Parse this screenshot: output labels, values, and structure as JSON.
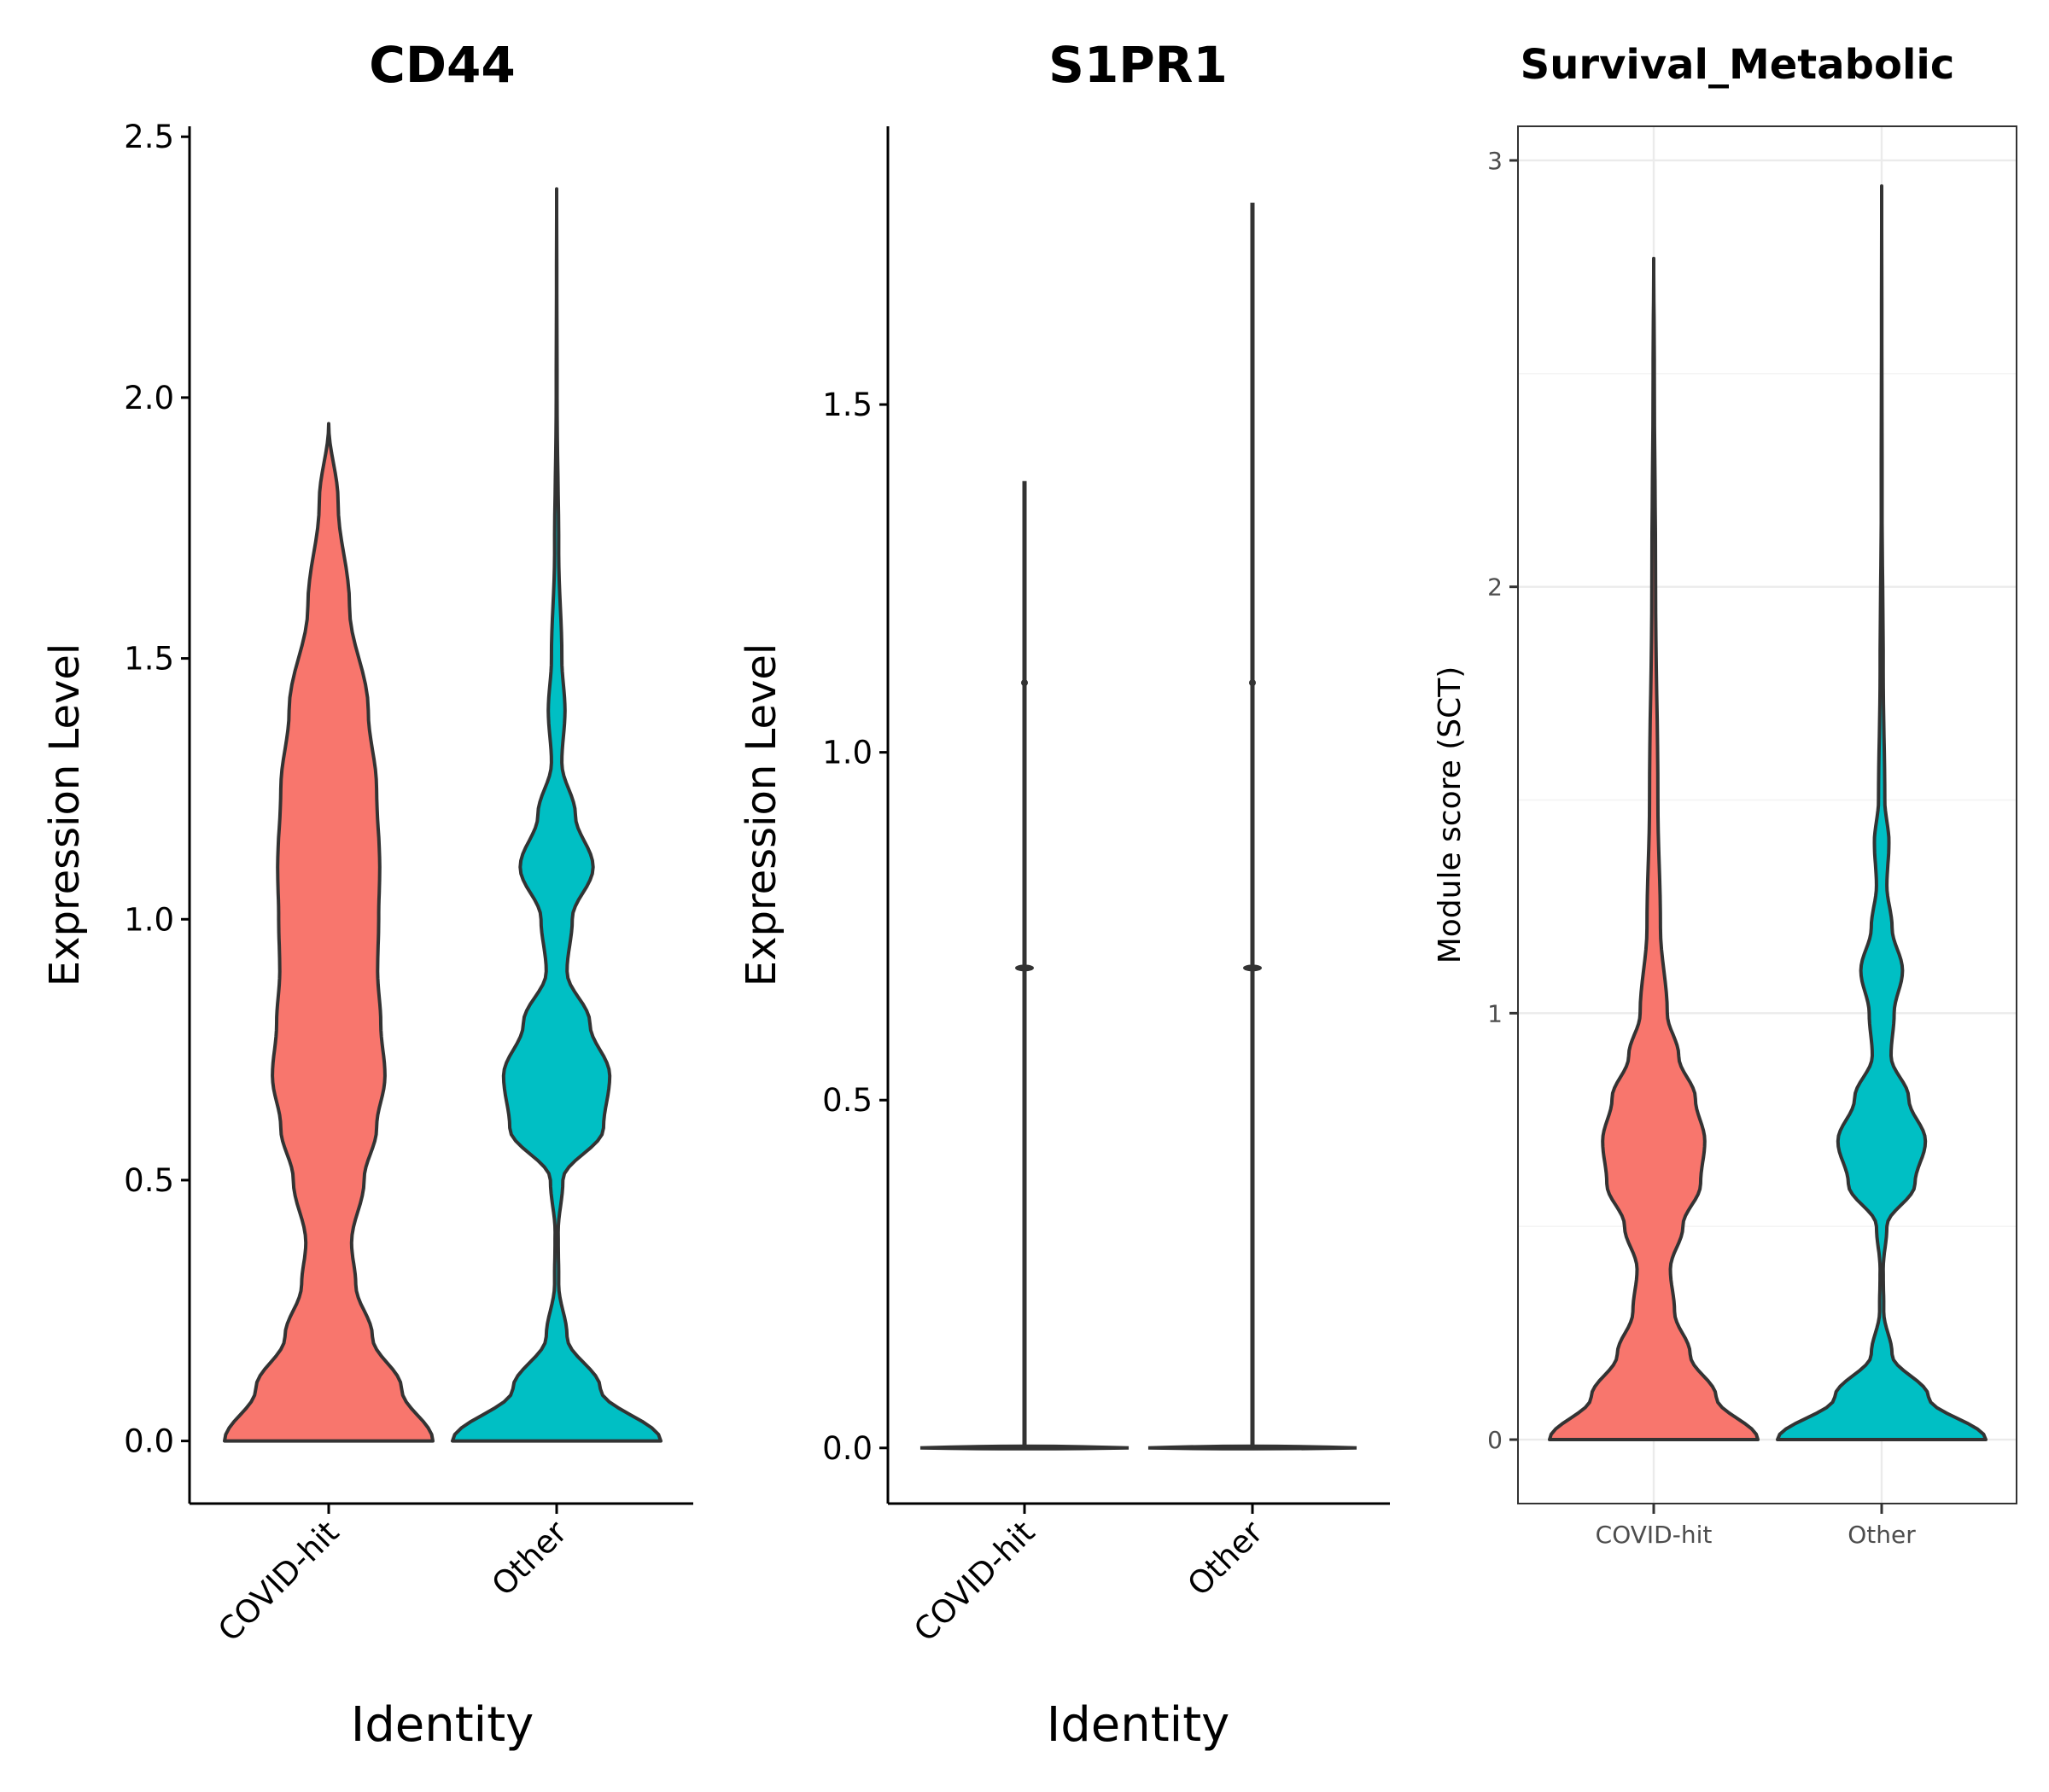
{
  "colors": {
    "covid": "#F8766D",
    "other": "#00BFC4",
    "outline": "#333333"
  },
  "chart_data": [
    {
      "type": "violin",
      "title": "CD44",
      "xlabel": "Identity",
      "ylabel": "Expression Level",
      "categories": [
        "COVID-hit",
        "Other"
      ],
      "ylim": [
        -0.12,
        2.52
      ],
      "yticks": [
        "0.0",
        "0.5",
        "1.0",
        "1.5",
        "2.0",
        "2.5"
      ],
      "ytick_values": [
        0,
        0.5,
        1.0,
        1.5,
        2.0,
        2.5
      ],
      "grid": false,
      "series": [
        {
          "category": "COVID-hit",
          "max": 1.95,
          "density": [
            [
              0,
              1.0
            ],
            [
              0.1,
              0.7
            ],
            [
              0.2,
              0.42
            ],
            [
              0.3,
              0.26
            ],
            [
              0.38,
              0.22
            ],
            [
              0.5,
              0.34
            ],
            [
              0.6,
              0.46
            ],
            [
              0.7,
              0.54
            ],
            [
              0.8,
              0.5
            ],
            [
              0.9,
              0.47
            ],
            [
              1.0,
              0.48
            ],
            [
              1.1,
              0.49
            ],
            [
              1.25,
              0.46
            ],
            [
              1.4,
              0.38
            ],
            [
              1.6,
              0.2
            ],
            [
              1.8,
              0.09
            ],
            [
              1.95,
              0.0
            ]
          ]
        },
        {
          "category": "Other",
          "max": 2.4,
          "density": [
            [
              0,
              1.0
            ],
            [
              0.1,
              0.42
            ],
            [
              0.2,
              0.1
            ],
            [
              0.3,
              0.02
            ],
            [
              0.4,
              0.015
            ],
            [
              0.5,
              0.06
            ],
            [
              0.6,
              0.45
            ],
            [
              0.7,
              0.51
            ],
            [
              0.8,
              0.32
            ],
            [
              0.9,
              0.1
            ],
            [
              1.0,
              0.15
            ],
            [
              1.1,
              0.35
            ],
            [
              1.2,
              0.18
            ],
            [
              1.3,
              0.05
            ],
            [
              1.4,
              0.08
            ],
            [
              1.5,
              0.05
            ],
            [
              1.7,
              0.02
            ],
            [
              2.0,
              0.004
            ],
            [
              2.4,
              0.0
            ]
          ]
        }
      ]
    },
    {
      "type": "violin",
      "title": "S1PR1",
      "xlabel": "Identity",
      "ylabel": "Expression Level",
      "categories": [
        "COVID-hit",
        "Other"
      ],
      "ylim": [
        -0.08,
        1.9
      ],
      "yticks": [
        "0.0",
        "0.5",
        "1.0",
        "1.5"
      ],
      "ytick_values": [
        0,
        0.5,
        1.0,
        1.5
      ],
      "grid": false,
      "series": [
        {
          "category": "COVID-hit",
          "max": 1.39,
          "dots": [
            0.69,
            1.1
          ]
        },
        {
          "category": "Other",
          "max": 1.79,
          "dots": [
            0.69,
            1.1
          ]
        }
      ]
    },
    {
      "type": "violin",
      "title": "Survival_Metabolic",
      "xlabel": "",
      "ylabel": "Module score (SCT)",
      "categories": [
        "COVID-hit",
        "Other"
      ],
      "ylim": [
        -0.15,
        3.08
      ],
      "yticks": [
        "0",
        "1",
        "2",
        "3"
      ],
      "ytick_values": [
        0,
        1,
        2,
        3
      ],
      "grid": true,
      "series": [
        {
          "category": "COVID-hit",
          "max": 2.77,
          "density": [
            [
              0,
              1.0
            ],
            [
              0.1,
              0.6
            ],
            [
              0.2,
              0.35
            ],
            [
              0.3,
              0.2
            ],
            [
              0.4,
              0.16
            ],
            [
              0.5,
              0.28
            ],
            [
              0.6,
              0.45
            ],
            [
              0.7,
              0.49
            ],
            [
              0.8,
              0.4
            ],
            [
              0.9,
              0.24
            ],
            [
              1.0,
              0.13
            ],
            [
              1.2,
              0.065
            ],
            [
              1.5,
              0.04
            ],
            [
              2.0,
              0.018
            ],
            [
              2.5,
              0.006
            ],
            [
              2.77,
              0.0
            ]
          ]
        },
        {
          "category": "Other",
          "max": 2.94,
          "density": [
            [
              0,
              1.0
            ],
            [
              0.1,
              0.45
            ],
            [
              0.2,
              0.1
            ],
            [
              0.3,
              0.02
            ],
            [
              0.4,
              0.015
            ],
            [
              0.5,
              0.05
            ],
            [
              0.6,
              0.32
            ],
            [
              0.7,
              0.42
            ],
            [
              0.8,
              0.26
            ],
            [
              0.9,
              0.09
            ],
            [
              1.0,
              0.12
            ],
            [
              1.1,
              0.2
            ],
            [
              1.2,
              0.1
            ],
            [
              1.3,
              0.05
            ],
            [
              1.4,
              0.07
            ],
            [
              1.5,
              0.03
            ],
            [
              1.8,
              0.015
            ],
            [
              2.2,
              0.004
            ],
            [
              2.94,
              0.0
            ]
          ]
        }
      ]
    }
  ]
}
